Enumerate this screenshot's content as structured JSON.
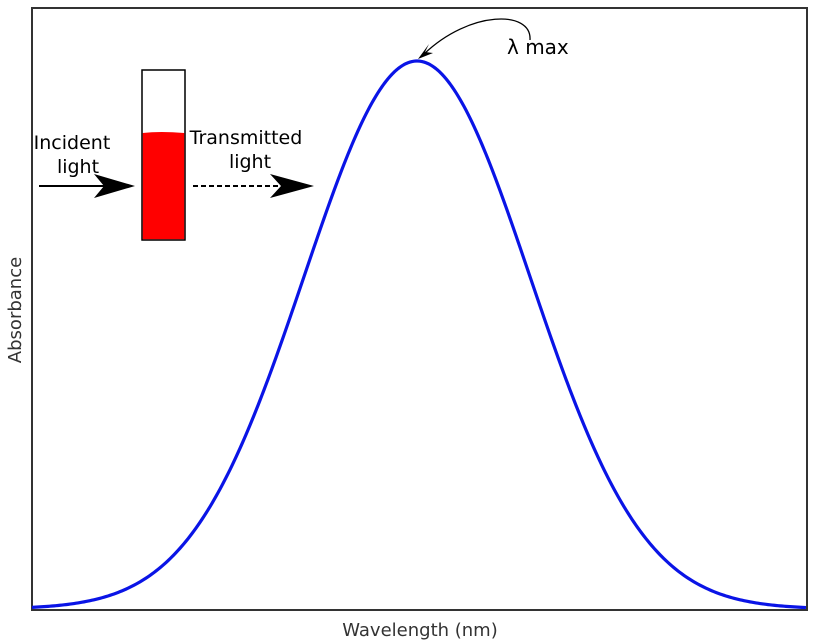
{
  "diagram": {
    "axis_labels": {
      "x": "Wavelength (nm)",
      "y": "Absorbance"
    },
    "peak_label": "λ max",
    "incident_label": [
      "Incident",
      "light"
    ],
    "transmitted_label": [
      "Transmitted",
      "light"
    ],
    "colors": {
      "curve": "#0a14e6",
      "liquid": "#ff0000",
      "frame": "#333333",
      "arrow": "#000000"
    }
  }
}
